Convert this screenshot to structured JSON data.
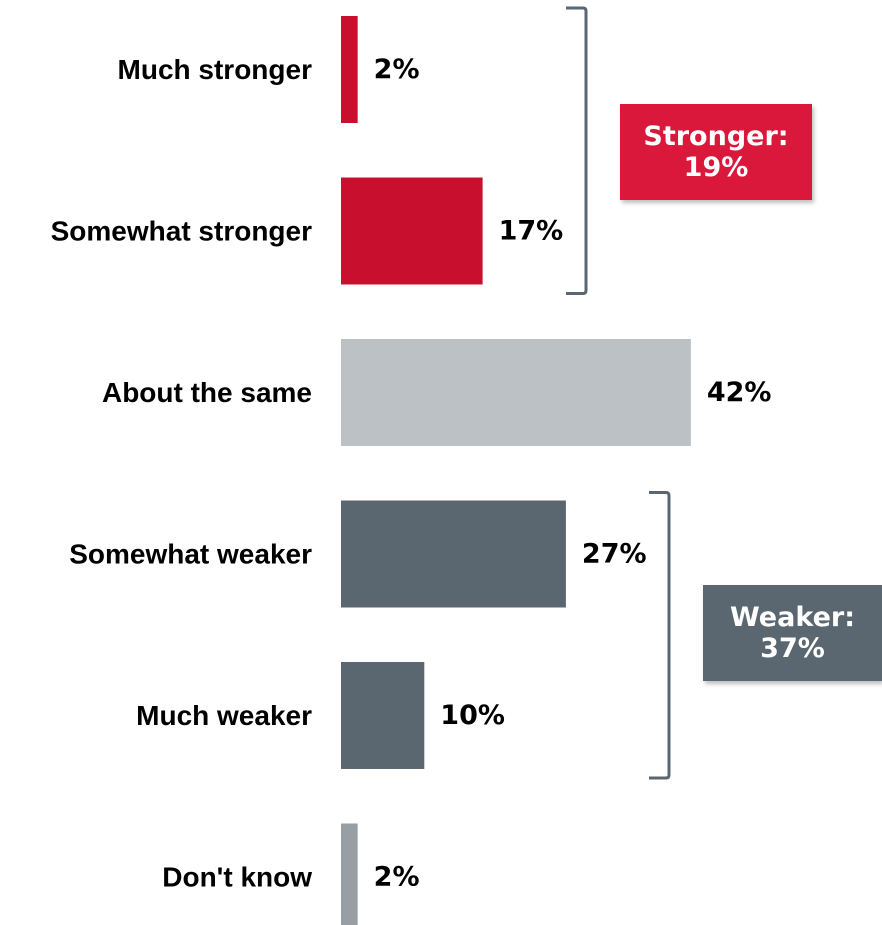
{
  "chart_data": {
    "type": "bar",
    "orientation": "horizontal",
    "categories": [
      "Much stronger",
      "Somewhat stronger",
      "About the same",
      "Somewhat weaker",
      "Much weaker",
      "Don't know"
    ],
    "values": [
      2,
      17,
      42,
      27,
      10,
      2
    ],
    "value_labels": [
      "2%",
      "17%",
      "42%",
      "27%",
      "10%",
      "2%"
    ],
    "colors": [
      "#c8102e",
      "#c8102e",
      "#bcc1c6",
      "#5b6770",
      "#5b6770",
      "#979ea4"
    ],
    "xlim": [
      0,
      42
    ],
    "grid": false,
    "title": "",
    "xlabel": "",
    "ylabel": "",
    "groups": [
      {
        "line1": "Stronger:",
        "line2": "19%",
        "color": "#d9183b",
        "first_index": 0,
        "last_index": 1
      },
      {
        "line1": "Weaker:",
        "line2": "37%",
        "color": "#5b6770",
        "first_index": 3,
        "last_index": 4
      }
    ],
    "bracket_color": "#5b6770"
  }
}
